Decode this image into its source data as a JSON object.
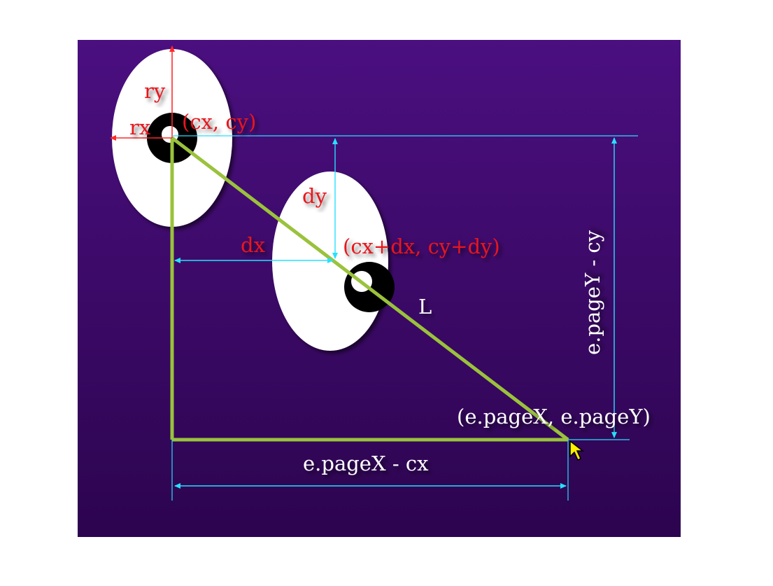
{
  "labels": {
    "ry": "ry",
    "rx": "rx",
    "center": "(cx, cy)",
    "dy": "dy",
    "dx": "dx",
    "offset_center": "(cx+dx, cy+dy)",
    "L": "L",
    "mouse": "(e.pageX, e.pageY)",
    "vertical_span": "e.pageY - cy",
    "horizontal_span": "e.pageX - cx"
  },
  "colors": {
    "background_top": "#4a0f7e",
    "background_bottom": "#2e0552",
    "eye_white": "#ffffff",
    "pupil": "#000000",
    "red_text": "#e8141e",
    "red_arrow": "#ff2a2a",
    "cyan_arrow": "#27e0ff",
    "green_line": "#9ac23c",
    "white_text": "#ffffff",
    "cursor": "#ffee00"
  },
  "icons": {
    "cursor": "mouse-pointer-icon"
  }
}
